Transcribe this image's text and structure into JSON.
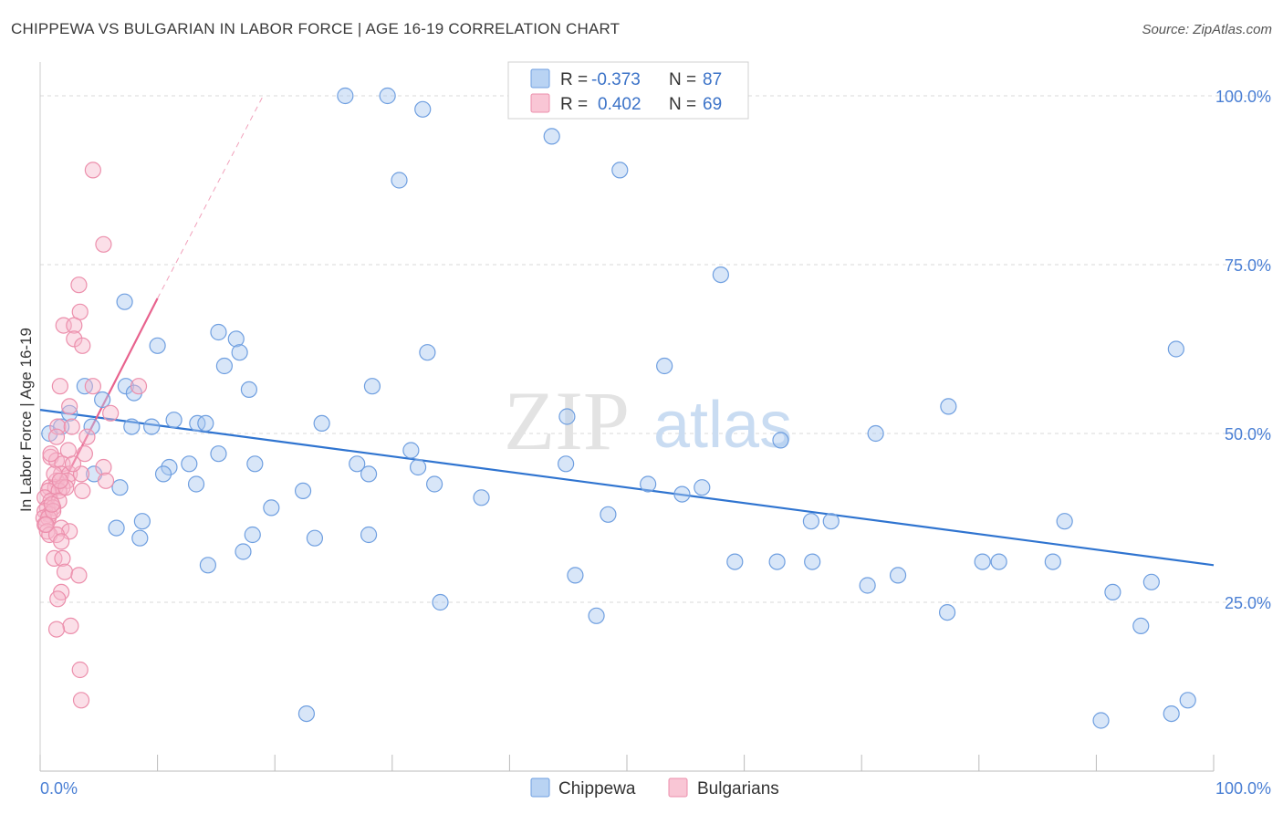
{
  "title": "CHIPPEWA VS BULGARIAN IN LABOR FORCE | AGE 16-19 CORRELATION CHART",
  "source": "Source: ZipAtlas.com",
  "watermark": {
    "zip": "ZIP",
    "atlas": "atlas"
  },
  "colors": {
    "chippewa_fill": "#a8c8f0",
    "chippewa_stroke": "#6f9fe0",
    "chippewa_line": "#2f74d0",
    "bulgarian_fill": "#f7b8cb",
    "bulgarian_stroke": "#ec8fac",
    "bulgarian_line": "#e8638e",
    "grid": "#d8d8d8",
    "tick_text": "#4a7fd4"
  },
  "legend": {
    "rows": [
      {
        "r_label": "R =",
        "r_value": "-0.373",
        "n_label": "N =",
        "n_value": "87"
      },
      {
        "r_label": "R =",
        "r_value": "0.402",
        "n_label": "N =",
        "n_value": "69"
      }
    ]
  },
  "chart_data": {
    "type": "scatter",
    "ylabel": "In Labor Force | Age 16-19",
    "xlim": [
      0,
      100
    ],
    "ylim": [
      0,
      105
    ],
    "x_tick_labels": [
      "0.0%",
      "100.0%"
    ],
    "y_tick_labels": [
      "25.0%",
      "50.0%",
      "75.0%",
      "100.0%"
    ],
    "y_ticks": [
      25,
      50,
      75,
      100
    ],
    "grid": "horizontal dashed",
    "legend_position": "top-center",
    "series": [
      {
        "name": "Chippewa",
        "trend": {
          "x": [
            0,
            100
          ],
          "y": [
            53.5,
            30.5
          ]
        },
        "points": [
          [
            26,
            100
          ],
          [
            29.6,
            100
          ],
          [
            43.6,
            94
          ],
          [
            49.4,
            89
          ],
          [
            30.6,
            87.5
          ],
          [
            58,
            73.5
          ],
          [
            7.2,
            69.5
          ],
          [
            15.2,
            65
          ],
          [
            16.7,
            64
          ],
          [
            10,
            63
          ],
          [
            15.7,
            60
          ],
          [
            53.2,
            60
          ],
          [
            33,
            62
          ],
          [
            96.8,
            62.5
          ],
          [
            3.8,
            57
          ],
          [
            7.3,
            57
          ],
          [
            17.8,
            56.5
          ],
          [
            28.3,
            57
          ],
          [
            5.3,
            55
          ],
          [
            77.4,
            54
          ],
          [
            2.5,
            53
          ],
          [
            44.9,
            52.5
          ],
          [
            11.4,
            52
          ],
          [
            13.4,
            51.5
          ],
          [
            14.1,
            51.5
          ],
          [
            0.8,
            50
          ],
          [
            1.8,
            51
          ],
          [
            4.4,
            51
          ],
          [
            7.8,
            51
          ],
          [
            9.5,
            51
          ],
          [
            24,
            51.5
          ],
          [
            71.2,
            50
          ],
          [
            63.1,
            49
          ],
          [
            15.2,
            47
          ],
          [
            31.6,
            47.5
          ],
          [
            11,
            45
          ],
          [
            12.7,
            45.5
          ],
          [
            18.3,
            45.5
          ],
          [
            27,
            45.5
          ],
          [
            32.2,
            45
          ],
          [
            44.8,
            45.5
          ],
          [
            28,
            44
          ],
          [
            10.5,
            44
          ],
          [
            4.6,
            44
          ],
          [
            6.8,
            42
          ],
          [
            13.3,
            42.5
          ],
          [
            33.6,
            42.5
          ],
          [
            51.8,
            42.5
          ],
          [
            54.7,
            41
          ],
          [
            56.4,
            42
          ],
          [
            22.4,
            41.5
          ],
          [
            37.6,
            40.5
          ],
          [
            19.7,
            39
          ],
          [
            8.7,
            37
          ],
          [
            48.4,
            38
          ],
          [
            65.7,
            37
          ],
          [
            67.4,
            37
          ],
          [
            87.3,
            37
          ],
          [
            6.5,
            36
          ],
          [
            8.5,
            34.5
          ],
          [
            18.1,
            35
          ],
          [
            23.4,
            34.5
          ],
          [
            28,
            35
          ],
          [
            17.3,
            32.5
          ],
          [
            14.3,
            30.5
          ],
          [
            59.2,
            31
          ],
          [
            62.8,
            31
          ],
          [
            65.8,
            31
          ],
          [
            80.3,
            31
          ],
          [
            81.7,
            31
          ],
          [
            86.3,
            31
          ],
          [
            45.6,
            29
          ],
          [
            70.5,
            27.5
          ],
          [
            73.1,
            29
          ],
          [
            91.4,
            26.5
          ],
          [
            94.7,
            28
          ],
          [
            34.1,
            25
          ],
          [
            47.4,
            23
          ],
          [
            77.3,
            23.5
          ],
          [
            93.8,
            21.5
          ],
          [
            22.7,
            8.5
          ],
          [
            90.4,
            7.5
          ],
          [
            96.4,
            8.5
          ],
          [
            97.8,
            10.5
          ],
          [
            32.6,
            98
          ],
          [
            8,
            56
          ],
          [
            17,
            62
          ]
        ]
      },
      {
        "name": "Bulgarians",
        "trend": {
          "x": [
            0.3,
            10
          ],
          "y": [
            37,
            70
          ],
          "extend_to": [
            19,
            100
          ]
        },
        "points": [
          [
            4.5,
            89
          ],
          [
            5.4,
            78
          ],
          [
            3.3,
            72
          ],
          [
            3.4,
            68
          ],
          [
            2,
            66
          ],
          [
            2.9,
            66
          ],
          [
            2.9,
            64
          ],
          [
            3.6,
            63
          ],
          [
            1.7,
            57
          ],
          [
            4.5,
            57
          ],
          [
            8.4,
            57
          ],
          [
            2.5,
            54
          ],
          [
            6,
            53
          ],
          [
            1.5,
            51
          ],
          [
            2.7,
            51
          ],
          [
            4,
            49.5
          ],
          [
            1.4,
            49.5
          ],
          [
            2.4,
            47.5
          ],
          [
            3.8,
            47
          ],
          [
            0.9,
            46.5
          ],
          [
            1.4,
            46
          ],
          [
            1.9,
            45.5
          ],
          [
            5.4,
            45
          ],
          [
            1.8,
            44
          ],
          [
            2.5,
            44
          ],
          [
            3.5,
            44
          ],
          [
            1.4,
            43
          ],
          [
            2.3,
            43
          ],
          [
            5.6,
            43
          ],
          [
            0.8,
            42
          ],
          [
            1.3,
            42
          ],
          [
            1.9,
            42
          ],
          [
            0.7,
            41.5
          ],
          [
            1.6,
            41.5
          ],
          [
            3.6,
            41.5
          ],
          [
            0.4,
            40.5
          ],
          [
            0.9,
            40
          ],
          [
            1.6,
            40
          ],
          [
            0.6,
            39
          ],
          [
            1.1,
            39
          ],
          [
            0.4,
            38.5
          ],
          [
            0.8,
            38
          ],
          [
            0.3,
            37.5
          ],
          [
            0.7,
            37.5
          ],
          [
            0.4,
            36.5
          ],
          [
            1.8,
            36
          ],
          [
            0.6,
            35.5
          ],
          [
            2.5,
            35.5
          ],
          [
            0.8,
            35
          ],
          [
            1.4,
            35
          ],
          [
            1.8,
            34
          ],
          [
            1.2,
            31.5
          ],
          [
            1.9,
            31.5
          ],
          [
            2.1,
            29.5
          ],
          [
            3.3,
            29
          ],
          [
            1.8,
            26.5
          ],
          [
            1.5,
            25.5
          ],
          [
            2.6,
            21.5
          ],
          [
            1.4,
            21
          ],
          [
            3.4,
            15
          ],
          [
            3.5,
            10.5
          ],
          [
            1.1,
            38.5
          ],
          [
            0.5,
            36.5
          ],
          [
            2.2,
            42
          ],
          [
            1.2,
            44
          ],
          [
            0.9,
            47
          ],
          [
            2.8,
            45.5
          ],
          [
            1,
            39.5
          ],
          [
            1.7,
            43
          ]
        ]
      }
    ]
  },
  "bottom_legend": [
    "Chippewa",
    "Bulgarians"
  ]
}
